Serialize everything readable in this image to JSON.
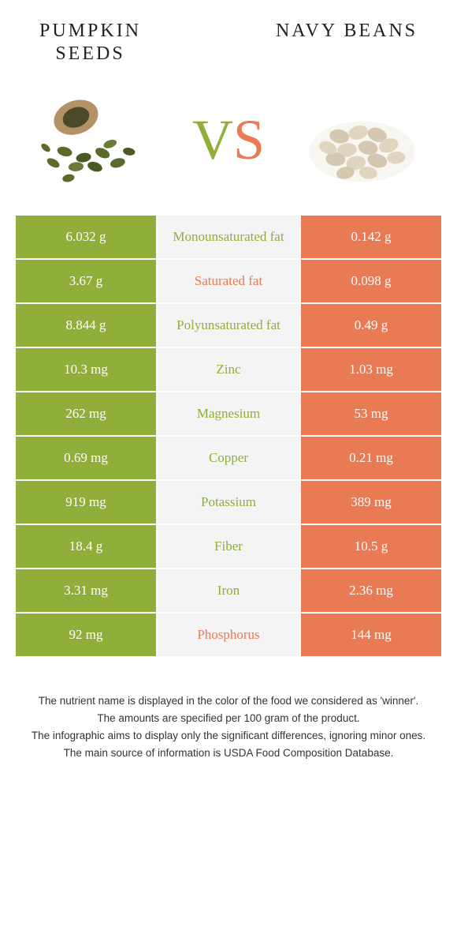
{
  "header": {
    "left_title": "PUMPKIN\nSEEDS",
    "right_title": "NAVY BEANS"
  },
  "vs": {
    "v": "V",
    "s": "S"
  },
  "colors": {
    "left": "#8fae3a",
    "right": "#e87a54",
    "mid_bg": "#f4f4f4"
  },
  "rows": [
    {
      "left": "6.032 g",
      "label": "Monounsaturated fat",
      "right": "0.142 g",
      "winner": "left"
    },
    {
      "left": "3.67 g",
      "label": "Saturated fat",
      "right": "0.098 g",
      "winner": "right"
    },
    {
      "left": "8.844 g",
      "label": "Polyunsaturated fat",
      "right": "0.49 g",
      "winner": "left"
    },
    {
      "left": "10.3 mg",
      "label": "Zinc",
      "right": "1.03 mg",
      "winner": "left"
    },
    {
      "left": "262 mg",
      "label": "Magnesium",
      "right": "53 mg",
      "winner": "left"
    },
    {
      "left": "0.69 mg",
      "label": "Copper",
      "right": "0.21 mg",
      "winner": "left"
    },
    {
      "left": "919 mg",
      "label": "Potassium",
      "right": "389 mg",
      "winner": "left"
    },
    {
      "left": "18.4 g",
      "label": "Fiber",
      "right": "10.5 g",
      "winner": "left"
    },
    {
      "left": "3.31 mg",
      "label": "Iron",
      "right": "2.36 mg",
      "winner": "left"
    },
    {
      "left": "92 mg",
      "label": "Phosphorus",
      "right": "144 mg",
      "winner": "right"
    }
  ],
  "footer": {
    "line1": "The nutrient name is displayed in the color of the food we considered as 'winner'.",
    "line2": "The amounts are specified per 100 gram of the product.",
    "line3": "The infographic aims to display only the significant differences, ignoring minor ones.",
    "line4": "The main source of information is USDA Food Composition Database."
  }
}
